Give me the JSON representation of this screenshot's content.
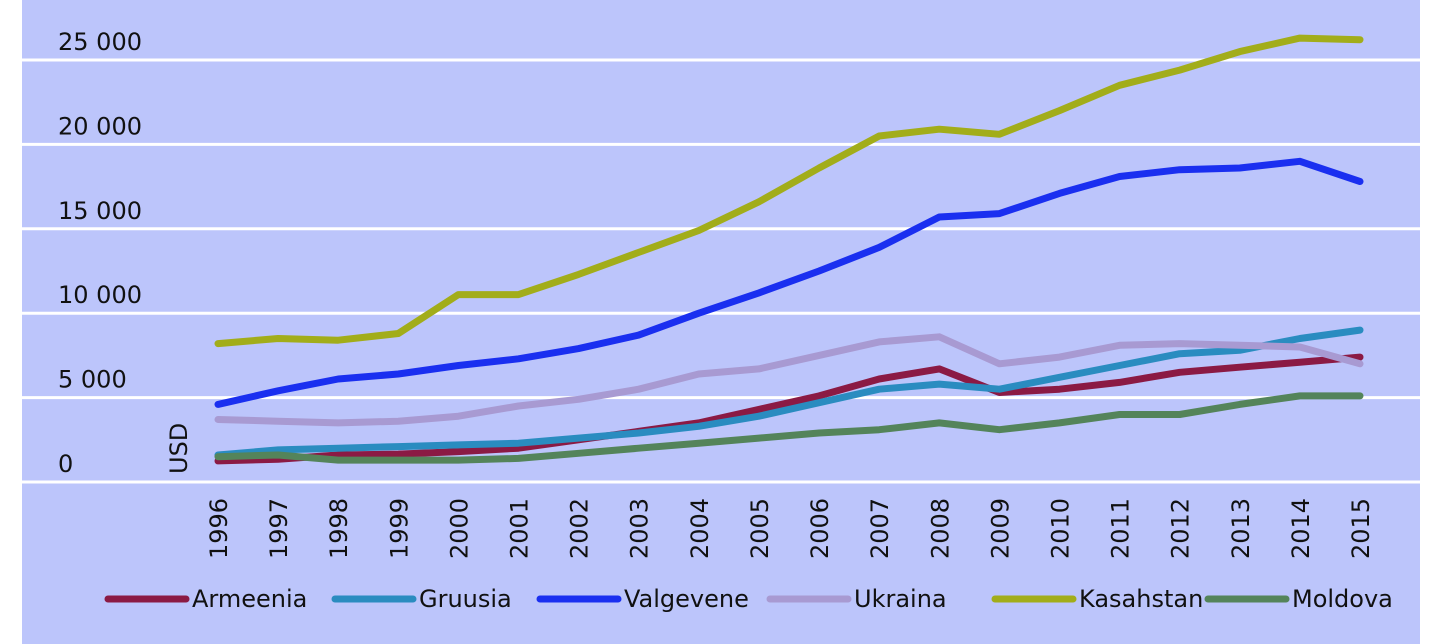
{
  "chart_data": {
    "type": "line",
    "title": "",
    "xlabel": "",
    "ylabel": "USD",
    "x": [
      "1996",
      "1997",
      "1998",
      "1999",
      "2000",
      "2001",
      "2002",
      "2003",
      "2004",
      "2005",
      "2006",
      "2007",
      "2008",
      "2009",
      "2010",
      "2011",
      "2012",
      "2013",
      "2014",
      "2015"
    ],
    "ylim": [
      0,
      25000
    ],
    "yticks": [
      0,
      5000,
      10000,
      15000,
      20000,
      25000
    ],
    "ytick_labels": [
      "0",
      "5 000",
      "10 000",
      "15 000",
      "20 000",
      "25 000"
    ],
    "grid": true,
    "legend_position": "bottom",
    "background_color": "#bcc5fb",
    "grid_color": "#ffffff",
    "series": [
      {
        "name": "Armeenia",
        "color": "#8b1a44",
        "values": [
          1250,
          1350,
          1600,
          1650,
          1800,
          2000,
          2500,
          3000,
          3500,
          4300,
          5100,
          6100,
          6700,
          5300,
          5500,
          5900,
          6500,
          6800,
          7100,
          7400
        ]
      },
      {
        "name": "Gruusia",
        "color": "#2a8cc0",
        "values": [
          1600,
          1900,
          2000,
          2100,
          2200,
          2300,
          2600,
          2900,
          3300,
          3900,
          4700,
          5500,
          5800,
          5500,
          6200,
          6900,
          7600,
          7800,
          8500,
          9000
        ]
      },
      {
        "name": "Valgevene",
        "color": "#1a2ff0",
        "values": [
          4600,
          5400,
          6100,
          6400,
          6900,
          7300,
          7900,
          8700,
          10000,
          11200,
          12500,
          13900,
          15700,
          15900,
          17100,
          18100,
          18500,
          18600,
          19000,
          17800
        ]
      },
      {
        "name": "Ukraina",
        "color": "#a89ad2",
        "values": [
          3700,
          3600,
          3500,
          3600,
          3900,
          4500,
          4900,
          5500,
          6400,
          6700,
          7500,
          8300,
          8600,
          7000,
          7400,
          8100,
          8200,
          8100,
          8000,
          7000
        ]
      },
      {
        "name": "Kasahstan",
        "color": "#a2ad1a",
        "values": [
          8200,
          8500,
          8400,
          8800,
          11100,
          11100,
          12300,
          13600,
          14900,
          16600,
          18600,
          20500,
          20900,
          20600,
          22000,
          23500,
          24400,
          25500,
          26300,
          26200
        ]
      },
      {
        "name": "Moldova",
        "color": "#54845a",
        "values": [
          1500,
          1600,
          1300,
          1300,
          1300,
          1400,
          1700,
          2000,
          2300,
          2600,
          2900,
          3100,
          3500,
          3100,
          3500,
          4000,
          4000,
          4600,
          5100,
          5100
        ]
      }
    ]
  }
}
